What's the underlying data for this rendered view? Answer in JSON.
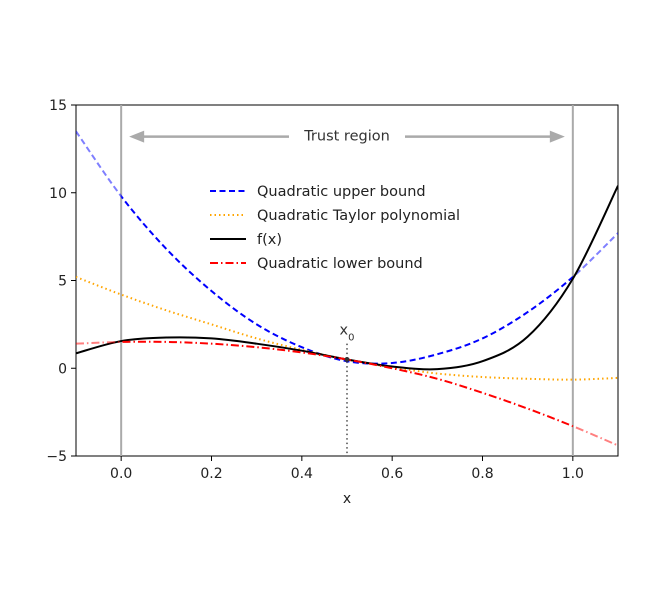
{
  "chart_data": {
    "type": "line",
    "title": "",
    "xlabel": "x",
    "ylabel": "",
    "xlim": [
      -0.1,
      1.1
    ],
    "ylim": [
      -5,
      15
    ],
    "xticks": [
      0.0,
      0.2,
      0.4,
      0.6,
      0.8,
      1.0
    ],
    "xtick_labels": [
      "0.0",
      "0.2",
      "0.4",
      "0.6",
      "0.8",
      "1.0"
    ],
    "yticks": [
      -5,
      0,
      5,
      10,
      15
    ],
    "ytick_labels": [
      "−5",
      "0",
      "5",
      "10",
      "15"
    ],
    "grid": false,
    "legend_position": "upper-center",
    "x0": 0.5,
    "x0_label": "x0",
    "trust_region": {
      "label": "Trust region",
      "from": 0.0,
      "to": 1.0,
      "color": "#aaaaaa"
    },
    "series": [
      {
        "name": "Quadratic upper bound",
        "color": "#0000ff",
        "style": "dashed",
        "x": [
          -0.1,
          0.0,
          0.1,
          0.2,
          0.3,
          0.4,
          0.5,
          0.6,
          0.7,
          0.8,
          0.9,
          1.0,
          1.1
        ],
        "y": [
          13.5,
          9.8,
          6.8,
          4.4,
          2.5,
          1.2,
          0.4,
          0.3,
          0.8,
          1.7,
          3.2,
          5.2,
          7.7
        ]
      },
      {
        "name": "Quadratic Taylor polynomial",
        "color": "#ffa500",
        "style": "dotted",
        "x": [
          -0.1,
          0.0,
          0.1,
          0.2,
          0.3,
          0.4,
          0.5,
          0.6,
          0.7,
          0.8,
          0.9,
          1.0,
          1.1
        ],
        "y": [
          5.2,
          4.2,
          3.3,
          2.5,
          1.7,
          1.05,
          0.5,
          0.05,
          -0.3,
          -0.5,
          -0.6,
          -0.65,
          -0.55
        ]
      },
      {
        "name": "f(x)",
        "color": "#000000",
        "style": "solid",
        "x": [
          -0.1,
          0.0,
          0.1,
          0.2,
          0.3,
          0.4,
          0.5,
          0.6,
          0.7,
          0.8,
          0.9,
          1.0,
          1.1
        ],
        "y": [
          0.85,
          1.55,
          1.75,
          1.7,
          1.4,
          1.0,
          0.5,
          0.1,
          -0.05,
          0.4,
          1.8,
          5.1,
          10.4
        ]
      },
      {
        "name": "Quadratic lower bound",
        "color": "#ff0000",
        "style": "dashdot",
        "x": [
          -0.1,
          0.0,
          0.1,
          0.2,
          0.3,
          0.4,
          0.5,
          0.6,
          0.7,
          0.8,
          0.9,
          1.0,
          1.1
        ],
        "y": [
          1.4,
          1.5,
          1.5,
          1.4,
          1.2,
          0.9,
          0.5,
          0.0,
          -0.6,
          -1.4,
          -2.3,
          -3.3,
          -4.4
        ]
      }
    ]
  }
}
